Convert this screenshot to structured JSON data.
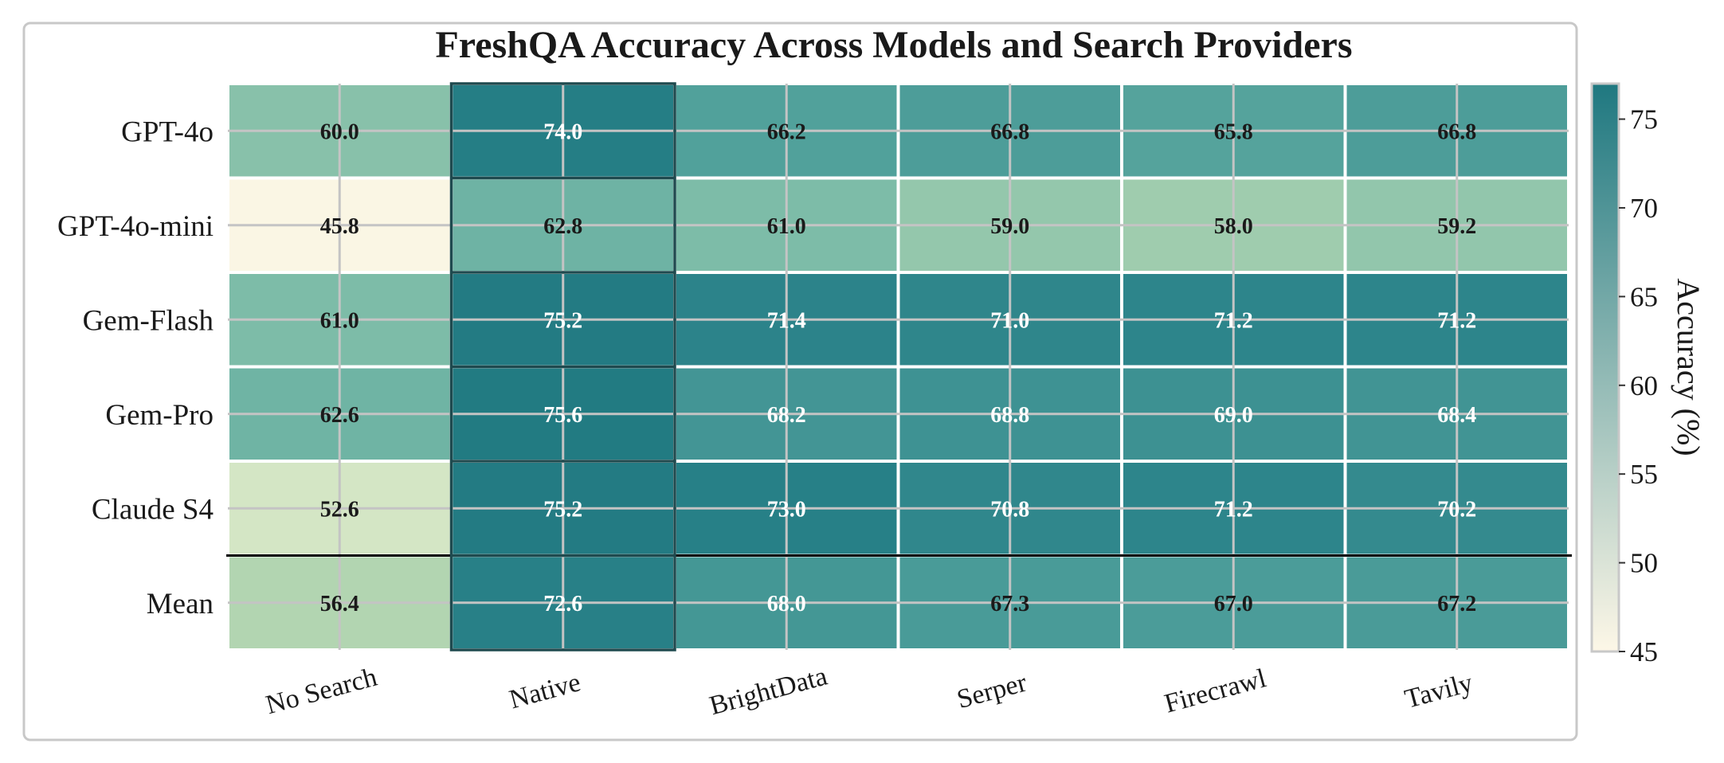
{
  "chart_data": {
    "type": "heatmap",
    "title": "FreshQA Accuracy Across Models and Search Providers",
    "rows": [
      "GPT-4o",
      "GPT-4o-mini",
      "Gem-Flash",
      "Gem-Pro",
      "Claude S4",
      "Mean"
    ],
    "columns": [
      "No Search",
      "Native",
      "BrightData",
      "Serper",
      "Firecrawl",
      "Tavily"
    ],
    "values": [
      [
        60.0,
        74.0,
        66.2,
        66.8,
        65.8,
        66.8
      ],
      [
        45.8,
        62.8,
        61.0,
        59.0,
        58.0,
        59.2
      ],
      [
        61.0,
        75.2,
        71.4,
        71.0,
        71.2,
        71.2
      ],
      [
        62.6,
        75.6,
        68.2,
        68.8,
        69.0,
        68.4
      ],
      [
        52.6,
        75.2,
        73.0,
        70.8,
        71.2,
        70.2
      ],
      [
        56.4,
        72.6,
        68.0,
        67.3,
        67.0,
        67.2
      ]
    ],
    "highlighted_column": "Native",
    "separator_before_row": "Mean",
    "colorbar": {
      "label": "Accuracy (%)",
      "range": [
        45,
        77
      ],
      "ticks": [
        45,
        50,
        55,
        60,
        65,
        70,
        75
      ],
      "colors": [
        "#fdf7e7",
        "#e7efd2",
        "#bad9b3",
        "#7dbca8",
        "#50a09b",
        "#2a8289",
        "#1f7880"
      ]
    },
    "grid": true,
    "label_light_threshold": 67.5
  }
}
